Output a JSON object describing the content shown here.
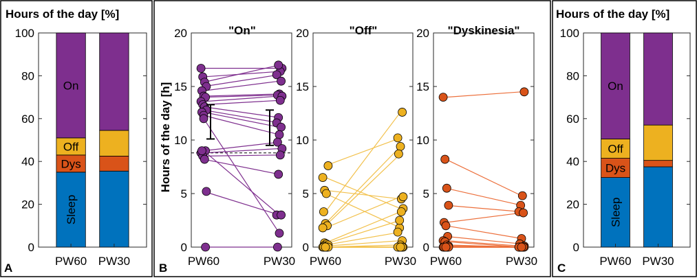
{
  "colors": {
    "on": "#7e2f8e",
    "off": "#edb120",
    "dys": "#d95319",
    "sleep": "#0072bd",
    "off_light": "#f2c04a",
    "dys_light": "#ec6f3b"
  },
  "chart_data": [
    {
      "panel_label": "A",
      "type": "bar",
      "title": "Hours of the day [%]",
      "categories": [
        "PW60",
        "PW30"
      ],
      "stacked": true,
      "ylim": [
        0,
        100
      ],
      "yticks": [
        0,
        20,
        40,
        60,
        80,
        100
      ],
      "series": [
        {
          "name": "Sleep",
          "values": [
            35,
            35.5
          ]
        },
        {
          "name": "Dys",
          "values": [
            8,
            7
          ]
        },
        {
          "name": "Off",
          "values": [
            8,
            12
          ]
        },
        {
          "name": "On",
          "values": [
            49,
            45.5
          ]
        }
      ]
    },
    {
      "panel_label": "B",
      "type": "scatter",
      "title": "\"On\"",
      "ylabel": "Hours of the day [h]",
      "categories": [
        "PW60",
        "PW30"
      ],
      "ylim": [
        0,
        20
      ],
      "yticks": [
        0,
        5,
        10,
        15,
        20
      ],
      "reference_line": 8.8,
      "error_bars": [
        {
          "category": "PW60",
          "low": 10.1,
          "high": 13.3
        },
        {
          "category": "PW30",
          "low": 9.5,
          "high": 12.8
        }
      ],
      "pairs": [
        [
          16.7,
          16.7
        ],
        [
          15.9,
          16.4
        ],
        [
          15.4,
          17.0
        ],
        [
          15.0,
          16.1
        ],
        [
          14.6,
          15.5
        ],
        [
          14.1,
          14.3
        ],
        [
          14.0,
          14.2
        ],
        [
          13.6,
          14.1
        ],
        [
          13.3,
          13.7
        ],
        [
          13.1,
          12.1
        ],
        [
          12.8,
          11.6
        ],
        [
          12.6,
          11.2
        ],
        [
          12.3,
          10.5
        ],
        [
          9.0,
          9.8
        ],
        [
          8.8,
          9.2
        ],
        [
          8.5,
          8.6
        ],
        [
          8.2,
          6.8
        ],
        [
          5.2,
          3.0
        ],
        [
          9.0,
          3.0
        ],
        [
          12.0,
          1.3
        ],
        [
          0.0,
          0.0
        ]
      ]
    },
    {
      "type": "scatter",
      "title": "\"Off\"",
      "categories": [
        "PW60",
        "PW30"
      ],
      "ylim": [
        0,
        20
      ],
      "yticks": [
        0,
        5,
        10,
        15,
        20
      ],
      "pairs": [
        [
          6.5,
          3.6
        ],
        [
          5.3,
          4.5
        ],
        [
          5.0,
          1.8
        ],
        [
          7.6,
          10.2
        ],
        [
          3.3,
          12.6
        ],
        [
          2.2,
          9.4
        ],
        [
          2.0,
          8.7
        ],
        [
          1.8,
          4.7
        ],
        [
          0.4,
          3.3
        ],
        [
          0.3,
          2.5
        ],
        [
          0.2,
          1.4
        ],
        [
          0.1,
          0.6
        ],
        [
          0.0,
          0.2
        ],
        [
          0.0,
          0.0
        ],
        [
          0.0,
          0.0
        ],
        [
          0.0,
          0.0
        ],
        [
          0.0,
          0.0
        ],
        [
          0.0,
          0.0
        ],
        [
          0.0,
          0.0
        ],
        [
          0.0,
          0.0
        ]
      ]
    },
    {
      "type": "scatter",
      "title": "\"Dyskinesia\"",
      "categories": [
        "PW60",
        "PW30"
      ],
      "ylim": [
        0,
        20
      ],
      "yticks": [
        0,
        5,
        10,
        15,
        20
      ],
      "pairs": [
        [
          14.0,
          14.5
        ],
        [
          8.2,
          4.8
        ],
        [
          5.5,
          3.9
        ],
        [
          3.9,
          3.3
        ],
        [
          2.3,
          3.2
        ],
        [
          2.0,
          0.8
        ],
        [
          1.0,
          0.3
        ],
        [
          0.6,
          0.1
        ],
        [
          0.5,
          0.0
        ],
        [
          0.2,
          0.0
        ],
        [
          0.1,
          0.0
        ],
        [
          0.0,
          0.0
        ],
        [
          0.0,
          0.0
        ],
        [
          0.0,
          0.0
        ],
        [
          0.0,
          0.0
        ],
        [
          0.0,
          0.0
        ],
        [
          0.0,
          0.0
        ],
        [
          0.0,
          0.0
        ],
        [
          0.0,
          0.0
        ],
        [
          0.0,
          0.0
        ]
      ]
    },
    {
      "panel_label": "C",
      "type": "bar",
      "title": "Hours of the day [%]",
      "categories": [
        "PW60",
        "PW30"
      ],
      "stacked": true,
      "ylim": [
        0,
        100
      ],
      "yticks": [
        0,
        20,
        40,
        60,
        80,
        100
      ],
      "series": [
        {
          "name": "Sleep",
          "values": [
            32.5,
            37.5
          ]
        },
        {
          "name": "Dys",
          "values": [
            9,
            3
          ]
        },
        {
          "name": "Off",
          "values": [
            9,
            16.5
          ]
        },
        {
          "name": "On",
          "values": [
            49.5,
            43
          ]
        }
      ]
    }
  ]
}
